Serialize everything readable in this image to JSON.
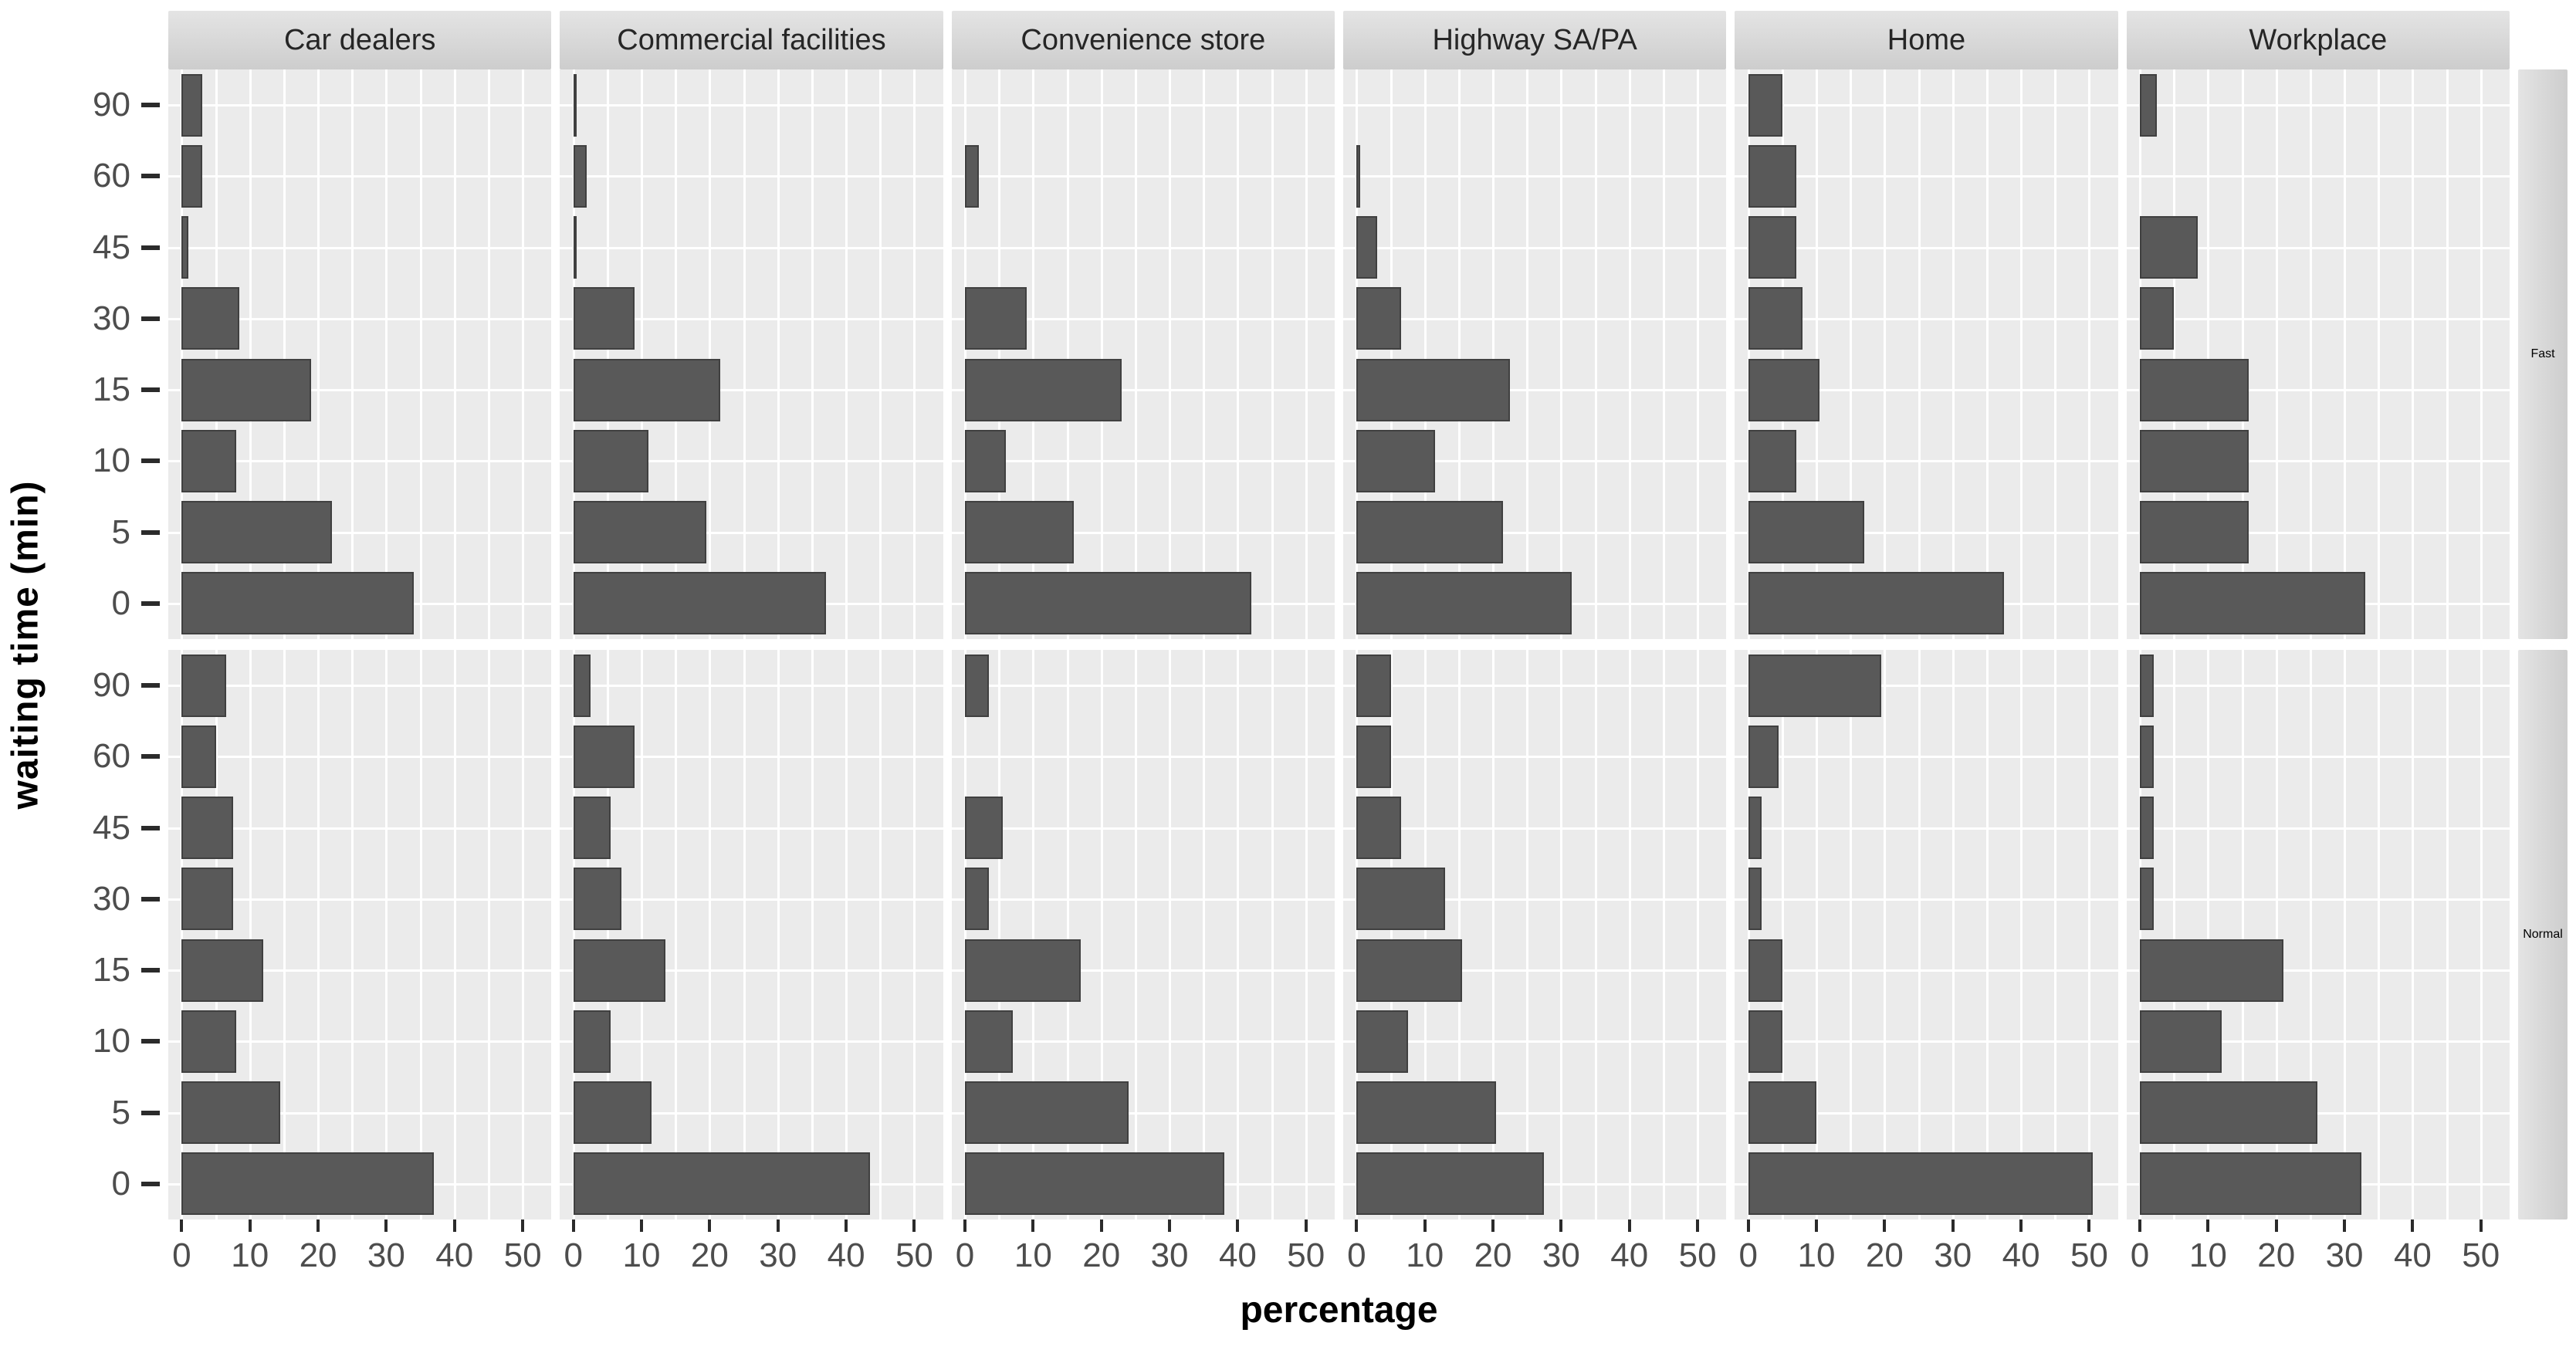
{
  "colors": {
    "figure_bg": "#ffffff",
    "bar_fill": "#595959",
    "bar_border": "#404040",
    "panel_bg": "#ebebeb",
    "grid_line": "#ffffff",
    "strip_bg_light": "#e4e4e4",
    "strip_bg_dark": "#cdcdcd",
    "strip_text": "#262626",
    "tick_text": "#4d4d4d",
    "tick_mark": "#2b2b2b",
    "axis_title": "#000000"
  },
  "chart_data": {
    "type": "bar",
    "orientation": "horizontal",
    "title": "",
    "xlabel": "percentage",
    "ylabel": "waiting time (min)",
    "xlim": [
      0,
      50
    ],
    "x_ticks": [
      0,
      10,
      20,
      30,
      40,
      50
    ],
    "grid_minor_step": 5,
    "legend_position": "none",
    "facet_columns": [
      "Car dealers",
      "Commercial facilities",
      "Convenience store",
      "Highway SA/PA",
      "Home",
      "Workplace"
    ],
    "facet_rows": [
      "Fast",
      "Normal"
    ],
    "categories_top_to_bottom": [
      "90",
      "60",
      "45",
      "30",
      "15",
      "10",
      "5",
      "0"
    ],
    "series": [
      {
        "row": "Fast",
        "col": "Car dealers",
        "values": [
          3,
          3,
          1,
          8.5,
          19,
          8,
          22,
          34
        ]
      },
      {
        "row": "Fast",
        "col": "Commercial facilities",
        "values": [
          0.5,
          2,
          0.5,
          9,
          21.5,
          11,
          19.5,
          37
        ]
      },
      {
        "row": "Fast",
        "col": "Convenience store",
        "values": [
          0,
          2,
          0,
          9,
          23,
          6,
          16,
          42
        ]
      },
      {
        "row": "Fast",
        "col": "Highway SA/PA",
        "values": [
          0,
          0.5,
          3,
          6.5,
          22.5,
          11.5,
          21.5,
          31.5
        ]
      },
      {
        "row": "Fast",
        "col": "Home",
        "values": [
          5,
          7,
          7,
          8,
          10.5,
          7,
          17,
          37.5
        ]
      },
      {
        "row": "Fast",
        "col": "Workplace",
        "values": [
          2.5,
          0,
          8.5,
          5,
          16,
          16,
          16,
          33
        ]
      },
      {
        "row": "Normal",
        "col": "Car dealers",
        "values": [
          6.5,
          5,
          7.5,
          7.5,
          12,
          8,
          14.5,
          37
        ]
      },
      {
        "row": "Normal",
        "col": "Commercial facilities",
        "values": [
          2.5,
          9,
          5.5,
          7,
          13.5,
          5.5,
          11.5,
          43.5
        ]
      },
      {
        "row": "Normal",
        "col": "Convenience store",
        "values": [
          3.5,
          0,
          5.5,
          3.5,
          17,
          7,
          24,
          38
        ]
      },
      {
        "row": "Normal",
        "col": "Highway SA/PA",
        "values": [
          5,
          5,
          6.5,
          13,
          15.5,
          7.5,
          20.5,
          27.5
        ]
      },
      {
        "row": "Normal",
        "col": "Home",
        "values": [
          19.5,
          4.5,
          2,
          2,
          5,
          5,
          10,
          50.5
        ]
      },
      {
        "row": "Normal",
        "col": "Workplace",
        "values": [
          2,
          2,
          2,
          2,
          21,
          12,
          26,
          32.5
        ]
      }
    ]
  }
}
